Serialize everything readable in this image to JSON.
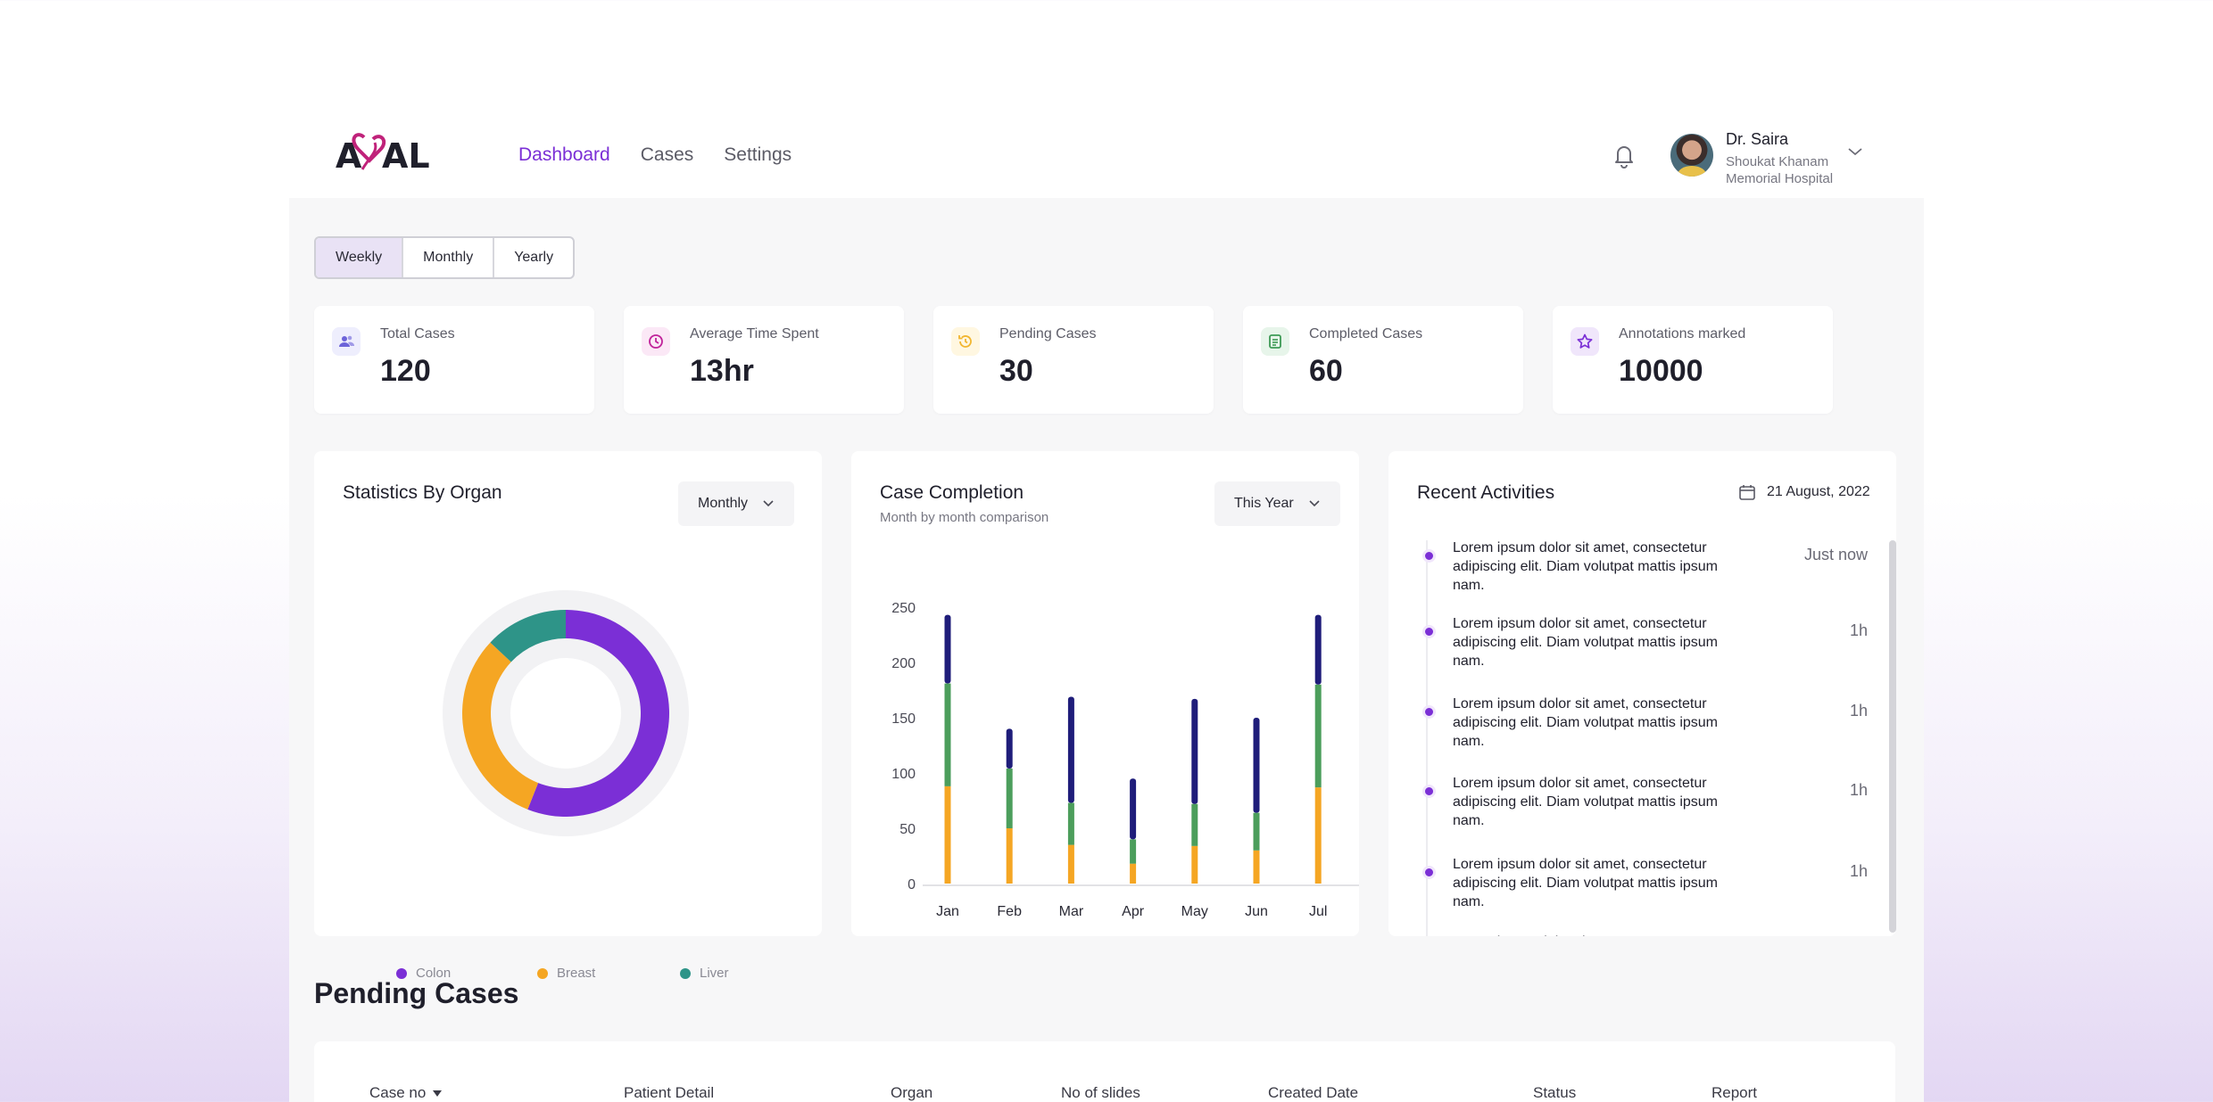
{
  "brand": {
    "logo_text": "ASAL"
  },
  "nav": {
    "items": [
      "Dashboard",
      "Cases",
      "Settings"
    ],
    "active": 0
  },
  "user": {
    "name": "Dr. Saira",
    "hospital_line1": "Shoukat Khanam",
    "hospital_line2": "Memorial Hospital"
  },
  "period_tabs": {
    "items": [
      "Weekly",
      "Monthly",
      "Yearly"
    ],
    "active": 0
  },
  "stats": [
    {
      "label": "Total Cases",
      "value": "120",
      "icon": "users-icon",
      "color": "#6c63d9",
      "bg": "#eeeefd"
    },
    {
      "label": "Average Time Spent",
      "value": "13hr",
      "icon": "clock-icon",
      "color": "#c0229a",
      "bg": "#fbe8f6"
    },
    {
      "label": "Pending Cases",
      "value": "30",
      "icon": "pending-icon",
      "color": "#f2b630",
      "bg": "#fff7e1"
    },
    {
      "label": "Completed Cases",
      "value": "60",
      "icon": "document-icon",
      "color": "#3e9a55",
      "bg": "#e7f5ea"
    },
    {
      "label": "Annotations marked",
      "value": "10000",
      "icon": "star-icon",
      "color": "#7b2fd6",
      "bg": "#f0e6fb"
    }
  ],
  "organ_card": {
    "title": "Statistics By Organ",
    "dropdown": "Monthly"
  },
  "completion_card": {
    "title": "Case Completion",
    "subtitle": "Month by month comparison",
    "dropdown": "This Year"
  },
  "activities": {
    "title": "Recent Activities",
    "date": "21 August, 2022",
    "items": [
      {
        "text": "Lorem ipsum dolor sit amet, consectetur adipiscing elit. Diam volutpat mattis ipsum nam.",
        "time": "Just now"
      },
      {
        "text": "Lorem ipsum dolor sit amet, consectetur adipiscing elit. Diam volutpat mattis ipsum nam.",
        "time": "1h"
      },
      {
        "text": "Lorem ipsum dolor sit amet, consectetur adipiscing elit. Diam volutpat mattis ipsum nam.",
        "time": "1h"
      },
      {
        "text": "Lorem ipsum dolor sit amet, consectetur adipiscing elit. Diam volutpat mattis ipsum nam.",
        "time": "1h"
      },
      {
        "text": "Lorem ipsum dolor sit amet, consectetur adipiscing elit. Diam volutpat mattis ipsum nam.",
        "time": "1h"
      },
      {
        "text": "Lorem ipsum dolor sit amet, consectetur",
        "time": ""
      }
    ]
  },
  "pending": {
    "title": "Pending Cases",
    "columns": [
      "Case no",
      "Patient Detail",
      "Organ",
      "No of slides",
      "Created Date",
      "Status",
      "Report"
    ]
  },
  "colors": {
    "accent": "#7b2fd6",
    "colon": "#7b2fd6",
    "breast": "#f5a623",
    "liver": "#2e9488",
    "bar_top": "#1f1d7a",
    "bar_mid": "#4c9e5c",
    "bar_bottom": "#f5a623"
  },
  "chart_data": [
    {
      "type": "pie",
      "title": "Statistics By Organ",
      "categories": [
        "Colon",
        "Breast",
        "Liver"
      ],
      "values": [
        56,
        31,
        13
      ],
      "donut": true
    },
    {
      "type": "bar",
      "stacked": true,
      "title": "Case Completion",
      "subtitle": "Month by month comparison",
      "categories": [
        "Jan",
        "Feb",
        "Mar",
        "Apr",
        "May",
        "Jun",
        "Jul"
      ],
      "series": [
        {
          "name": "",
          "color": "#f5a623",
          "values": [
            88,
            50,
            35,
            18,
            34,
            30,
            87
          ]
        },
        {
          "name": "",
          "color": "#4c9e5c",
          "values": [
            93,
            54,
            38,
            22,
            38,
            34,
            93
          ]
        },
        {
          "name": "",
          "color": "#1f1d7a",
          "values": [
            62,
            36,
            96,
            55,
            95,
            86,
            63
          ]
        }
      ],
      "yticks": [
        0,
        50,
        100,
        150,
        200,
        250
      ],
      "ylim": [
        0,
        250
      ],
      "grid": false
    }
  ]
}
